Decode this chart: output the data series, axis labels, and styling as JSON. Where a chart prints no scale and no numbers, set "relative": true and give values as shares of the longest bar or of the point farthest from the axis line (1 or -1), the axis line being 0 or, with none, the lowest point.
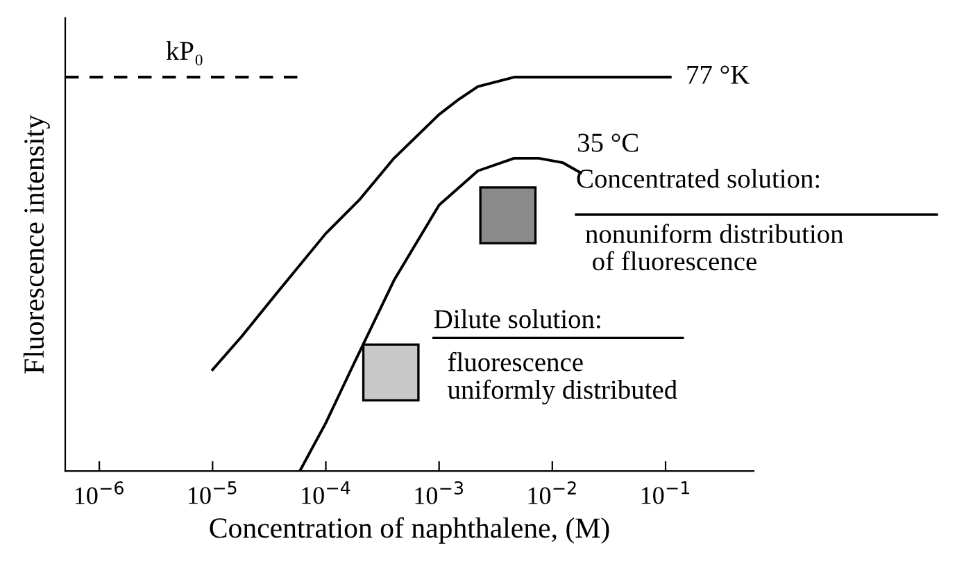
{
  "chart_data": {
    "type": "line",
    "relative": true,
    "log": "x",
    "grid": false,
    "legend": false,
    "xlabel": "Concentration of naphthalene, (M)",
    "ylabel": "Fluorescence intensity",
    "xlim": [
      5e-07,
      0.6
    ],
    "xticks": [
      {
        "value": 1e-06,
        "label": "10$^{−6}$"
      },
      {
        "value": 1e-05,
        "label": "10$^{−5}$"
      },
      {
        "value": 0.0001,
        "label": "10$^{−4}$"
      },
      {
        "value": 0.001,
        "label": "10$^{−3}$"
      },
      {
        "value": 0.01,
        "label": "10$^{−2}$"
      },
      {
        "value": 0.1,
        "label": "10$^{−1}$"
      }
    ],
    "series": [
      {
        "name": "kP₀",
        "color": "#000000",
        "line_style": "dashed",
        "x": [
          5e-07,
          6e-05
        ],
        "values": [
          1,
          1
        ]
      },
      {
        "name": "77 °K",
        "color": "#000000",
        "line_style": "solid",
        "x": [
          1e-05,
          1.8e-05,
          3.7e-05,
          0.0001,
          0.0002,
          0.0004,
          0.001,
          0.0015,
          0.0022,
          0.0046,
          0.11
        ],
        "values": [
          0.257,
          0.341,
          0.452,
          0.603,
          0.69,
          0.794,
          0.905,
          0.944,
          0.976,
          1,
          1
        ]
      },
      {
        "name": "35 °C",
        "color": "#000000",
        "line_style": "solid",
        "x": [
          5.9e-05,
          0.0001,
          0.00017,
          0.0004,
          0.001,
          0.0022,
          0.0046,
          0.0076,
          0.0123,
          0.0178
        ],
        "values": [
          0,
          0.122,
          0.262,
          0.484,
          0.675,
          0.762,
          0.794,
          0.794,
          0.783,
          0.757
        ]
      }
    ],
    "annotations": [
      "Concentrated solution:",
      "nonuniform distribution\n of fluorescence",
      "Dilute solution:",
      "fluorescence\nuniformly distributed"
    ]
  }
}
